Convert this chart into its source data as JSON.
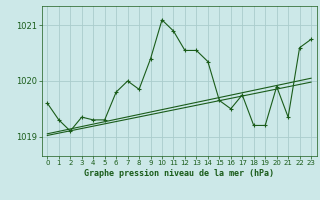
{
  "title": "Graphe pression niveau de la mer (hPa)",
  "bg_color": "#cce8e8",
  "grid_color": "#aacccc",
  "line_color": "#1a5c1a",
  "xlim": [
    -0.5,
    23.5
  ],
  "ylim": [
    1018.65,
    1021.35
  ],
  "yticks": [
    1019,
    1020,
    1021
  ],
  "xticks": [
    0,
    1,
    2,
    3,
    4,
    5,
    6,
    7,
    8,
    9,
    10,
    11,
    12,
    13,
    14,
    15,
    16,
    17,
    18,
    19,
    20,
    21,
    22,
    23
  ],
  "series1_x": [
    0,
    1,
    2,
    3,
    4,
    5,
    6,
    7,
    8,
    9,
    10,
    11,
    12,
    13,
    14,
    15,
    16,
    17,
    18,
    19,
    20,
    21,
    22,
    23
  ],
  "series1_y": [
    1019.6,
    1019.3,
    1019.1,
    1019.35,
    1019.3,
    1019.3,
    1019.8,
    1020.0,
    1019.85,
    1020.4,
    1021.1,
    1020.9,
    1020.55,
    1020.55,
    1020.35,
    1019.65,
    1019.5,
    1019.75,
    1019.2,
    1019.2,
    1019.9,
    1019.35,
    1020.6,
    1020.75
  ],
  "trend1_x": [
    0,
    23
  ],
  "trend1_y": [
    1019.05,
    1020.05
  ],
  "trend2_x": [
    0,
    23
  ],
  "trend2_y": [
    1019.02,
    1019.98
  ]
}
